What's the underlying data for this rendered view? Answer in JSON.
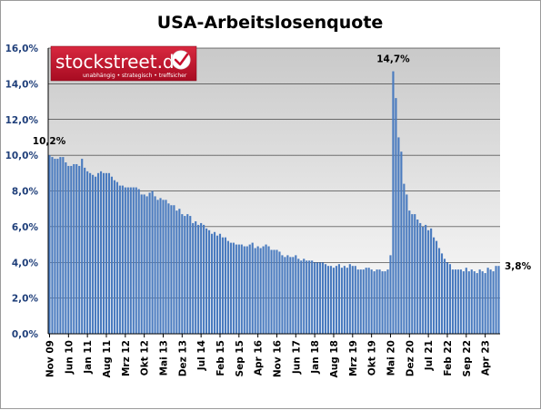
{
  "chart_data": {
    "type": "bar",
    "title": "USA-Arbeitslosenquote",
    "ylim": [
      0,
      16
    ],
    "yticks": [
      "0,0%",
      "2,0%",
      "4,0%",
      "6,0%",
      "8,0%",
      "10,0%",
      "12,0%",
      "14,0%",
      "16,0%"
    ],
    "ytick_values": [
      0,
      2,
      4,
      6,
      8,
      10,
      12,
      14,
      16
    ],
    "grid": true,
    "xtick_labels": [
      "Nov 09",
      "Jun 10",
      "Jan 11",
      "Aug 11",
      "Mrz 12",
      "Okt 12",
      "Mai 13",
      "Dez 13",
      "Jul 14",
      "Feb 15",
      "Sep 15",
      "Apr 16",
      "Nov 16",
      "Jun 17",
      "Jan 18",
      "Aug 18",
      "Mrz 19",
      "Okt 19",
      "Mai 20",
      "Dez 20",
      "Jul 21",
      "Feb 22",
      "Sep 22",
      "Apr 23"
    ],
    "series": [
      {
        "values": [
          10.0,
          9.9,
          9.8,
          9.8,
          9.9,
          9.9,
          9.6,
          9.4,
          9.4,
          9.5,
          9.5,
          9.4,
          9.8,
          9.3,
          9.1,
          9.0,
          8.9,
          8.8,
          9.0,
          9.1,
          9.0,
          9.0,
          9.0,
          8.8,
          8.6,
          8.5,
          8.3,
          8.3,
          8.2,
          8.2,
          8.2,
          8.2,
          8.2,
          8.1,
          7.8,
          7.8,
          7.7,
          7.9,
          8.0,
          7.7,
          7.5,
          7.6,
          7.5,
          7.5,
          7.3,
          7.2,
          7.2,
          6.9,
          7.0,
          6.7,
          6.6,
          6.7,
          6.6,
          6.2,
          6.3,
          6.1,
          6.2,
          6.1,
          5.9,
          5.8,
          5.6,
          5.7,
          5.5,
          5.6,
          5.4,
          5.4,
          5.2,
          5.1,
          5.1,
          5.0,
          5.0,
          5.0,
          4.9,
          4.9,
          5.0,
          5.1,
          4.8,
          4.9,
          4.8,
          4.9,
          5.0,
          4.9,
          4.7,
          4.7,
          4.7,
          4.6,
          4.4,
          4.3,
          4.4,
          4.3,
          4.3,
          4.4,
          4.2,
          4.1,
          4.2,
          4.1,
          4.1,
          4.1,
          4.0,
          4.0,
          4.0,
          4.0,
          3.9,
          3.8,
          3.8,
          3.7,
          3.8,
          3.9,
          3.7,
          3.8,
          3.7,
          3.9,
          3.8,
          3.8,
          3.6,
          3.6,
          3.6,
          3.7,
          3.7,
          3.6,
          3.5,
          3.6,
          3.6,
          3.5,
          3.5,
          3.6,
          4.4,
          14.7,
          13.2,
          11.0,
          10.2,
          8.4,
          7.8,
          6.9,
          6.7,
          6.7,
          6.4,
          6.2,
          6.0,
          6.1,
          5.8,
          5.9,
          5.4,
          5.2,
          4.8,
          4.5,
          4.2,
          4.0,
          3.9,
          3.6,
          3.6,
          3.6,
          3.6,
          3.5,
          3.7,
          3.5,
          3.6,
          3.5,
          3.4,
          3.6,
          3.5,
          3.4,
          3.7,
          3.6,
          3.5,
          3.8,
          3.8
        ]
      }
    ],
    "annotations": [
      {
        "text": "10,2%"
      },
      {
        "text": "14,7%"
      },
      {
        "text": "3,8%"
      }
    ],
    "bar_color": "#4a7bbf",
    "plot_gradient": [
      "#c9c9c9",
      "#ffffff"
    ]
  },
  "logo": {
    "main": "stockstreet.de",
    "tagline": "unabhängig • strategisch • treffsicher",
    "color": "#c8102e"
  }
}
